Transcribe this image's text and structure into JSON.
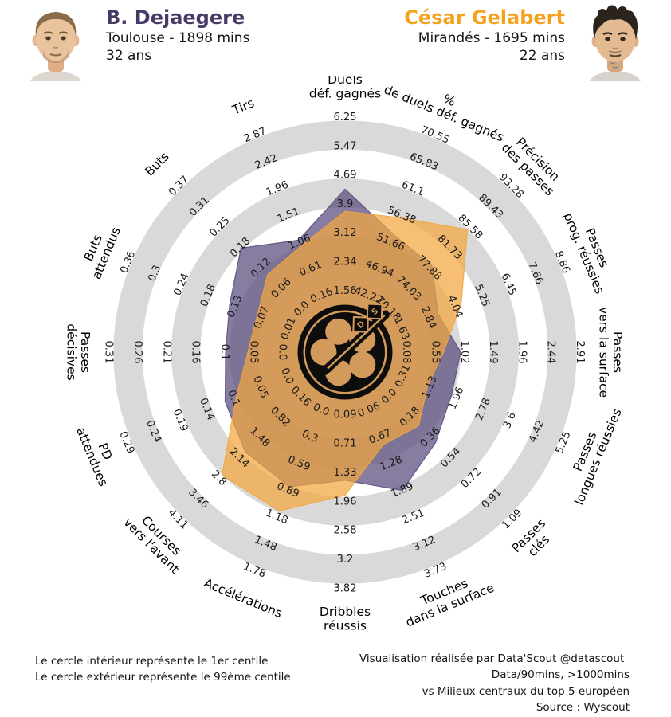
{
  "header": {
    "left": {
      "name": "B. Dejaegere",
      "club_minutes": "Toulouse - 1898 mins",
      "age": "32 ans",
      "color": "#483a66"
    },
    "right": {
      "name": "César Gelabert",
      "club_minutes": "Mirandés - 1695 mins",
      "age": "22 ans",
      "color": "#f4a11d"
    }
  },
  "footer": {
    "left_lines": [
      "Le cercle intérieur représente le 1er centile",
      "Le cercle extérieur représente le 99ème centile"
    ],
    "right_lines": [
      "Visualisation réalisée par Data'Scout @datascout_",
      "Data/90mins, >1000mins",
      "vs Milieux centraux du top 5 européen",
      "Source : Wyscout"
    ]
  },
  "chart_data": {
    "type": "radar",
    "variant": "percentile-pizza-comparison",
    "rings": {
      "count": 7,
      "band_color": "#d9d9d9",
      "inner_meaning": "1er centile",
      "outer_meaning": "99ème centile"
    },
    "legend_position": "none",
    "center_logo_icon": "datascout-ball-dart-icon",
    "series": [
      {
        "key": "dejaegere",
        "name": "B. Dejaegere",
        "color": "#594b7d",
        "fill_opacity": 0.72
      },
      {
        "key": "gelabert",
        "name": "César Gelabert",
        "color": "#f2a63f",
        "fill_opacity": 0.72
      }
    ],
    "axes": [
      {
        "label": "Duels déf. gagnés",
        "lines": [
          "Duels",
          "déf. gagnés"
        ],
        "angle_deg": 90,
        "ticks": [
          "1.56",
          "2.34",
          "3.12",
          "3.9",
          "4.69",
          "5.47",
          "6.25"
        ],
        "values": {
          "dejaegere": 4.4,
          "gelabert": 3.8
        }
      },
      {
        "label": "% de duels déf. gagnés",
        "lines": [
          "%",
          "de duels déf. gagnés"
        ],
        "angle_deg": 67.5,
        "ticks": [
          "42.22",
          "46.94",
          "51.66",
          "56.38",
          "61.1",
          "65.83",
          "70.55"
        ],
        "values": {
          "dejaegere": 53.5,
          "gelabert": 56.5
        }
      },
      {
        "label": "Précision des passes",
        "lines": [
          "Précision",
          "des passes"
        ],
        "angle_deg": 45,
        "ticks": [
          "70.18",
          "74.03",
          "77.88",
          "81.73",
          "85.58",
          "89.43",
          "93.28"
        ],
        "values": {
          "dejaegere": 78.8,
          "gelabert": 85.5
        }
      },
      {
        "label": "Passes prog. réussies",
        "lines": [
          "Passes",
          "prog. réussies"
        ],
        "angle_deg": 22.5,
        "ticks": [
          "1.63",
          "2.84",
          "4.04",
          "5.25",
          "6.45",
          "7.66",
          "8.86"
        ],
        "values": {
          "dejaegere": 3.4,
          "gelabert": 4.45
        }
      },
      {
        "label": "Passes vers la surface",
        "lines": [
          "Passes",
          "vers la surface"
        ],
        "angle_deg": 0,
        "ticks": [
          "0.08",
          "0.55",
          "1.02",
          "1.49",
          "1.96",
          "2.44",
          "2.91"
        ],
        "values": {
          "dejaegere": 1.02,
          "gelabert": 0.74
        }
      },
      {
        "label": "Passes longues réussies",
        "lines": [
          "Passes",
          "longues réussies"
        ],
        "angle_deg": -22.5,
        "ticks": [
          "0.31",
          "1.13",
          "1.96",
          "2.78",
          "3.6",
          "4.42",
          "5.25"
        ],
        "values": {
          "dejaegere": 1.93,
          "gelabert": 1.2
        }
      },
      {
        "label": "Passes clés",
        "lines": [
          "Passes",
          "clés"
        ],
        "angle_deg": -45,
        "ticks": [
          "0.0",
          "0.18",
          "0.36",
          "0.54",
          "0.72",
          "0.91",
          "1.09"
        ],
        "values": {
          "dejaegere": 0.44,
          "gelabert": 0.29
        }
      },
      {
        "label": "Touches dans la surface",
        "lines": [
          "Touches",
          "dans la surface"
        ],
        "angle_deg": -67.5,
        "ticks": [
          "0.06",
          "0.67",
          "1.28",
          "1.89",
          "2.51",
          "3.12",
          "3.73"
        ],
        "values": {
          "dejaegere": 2.0,
          "gelabert": 0.95
        }
      },
      {
        "label": "Dribbles réussis",
        "lines": [
          "Dribbles",
          "réussis"
        ],
        "angle_deg": -90,
        "ticks": [
          "0.09",
          "0.71",
          "1.33",
          "1.96",
          "2.58",
          "3.2",
          "3.82"
        ],
        "values": {
          "dejaegere": 1.6,
          "gelabert": 1.92
        }
      },
      {
        "label": "Accélérations",
        "lines": [
          "Accélérations"
        ],
        "angle_deg": -112.5,
        "ticks": [
          "0.0",
          "0.3",
          "0.59",
          "0.89",
          "1.18",
          "1.48",
          "1.78"
        ],
        "values": {
          "dejaegere": 0.9,
          "gelabert": 1.17
        }
      },
      {
        "label": "Courses vers l'avant",
        "lines": [
          "Courses",
          "vers l'avant"
        ],
        "angle_deg": -135,
        "ticks": [
          "0.16",
          "0.82",
          "1.48",
          "2.14",
          "2.8",
          "3.46",
          "4.11"
        ],
        "values": {
          "dejaegere": 2.05,
          "gelabert": 2.8
        }
      },
      {
        "label": "PD attendues",
        "lines": [
          "PD",
          "attendues"
        ],
        "angle_deg": -157.5,
        "ticks": [
          "0.0",
          "0.05",
          "0.1",
          "0.14",
          "0.19",
          "0.24",
          "0.29"
        ],
        "values": {
          "dejaegere": 0.12,
          "gelabert": 0.1
        }
      },
      {
        "label": "Passes décisives",
        "lines": [
          "Passes",
          "décisives"
        ],
        "angle_deg": 180,
        "ticks": [
          "0.0",
          "0.05",
          "0.1",
          "0.16",
          "0.21",
          "0.26",
          "0.31"
        ],
        "values": {
          "dejaegere": 0.11,
          "gelabert": 0.07
        }
      },
      {
        "label": "Buts attendus",
        "lines": [
          "Buts",
          "attendus"
        ],
        "angle_deg": 157.5,
        "ticks": [
          "0.01",
          "0.07",
          "0.13",
          "0.18",
          "0.24",
          "0.3",
          "0.36"
        ],
        "values": {
          "dejaegere": 0.145,
          "gelabert": 0.085
        }
      },
      {
        "label": "Buts",
        "lines": [
          "Buts"
        ],
        "angle_deg": 135,
        "ticks": [
          "0.0",
          "0.06",
          "0.12",
          "0.18",
          "0.25",
          "0.31",
          "0.37"
        ],
        "values": {
          "dejaegere": 0.19,
          "gelabert": 0.11
        }
      },
      {
        "label": "Tirs",
        "lines": [
          "Tirs"
        ],
        "angle_deg": 112.5,
        "ticks": [
          "0.16",
          "0.61",
          "1.06",
          "1.51",
          "1.96",
          "2.42",
          "2.87"
        ],
        "values": {
          "dejaegere": 1.15,
          "gelabert": 1.05
        }
      }
    ]
  }
}
